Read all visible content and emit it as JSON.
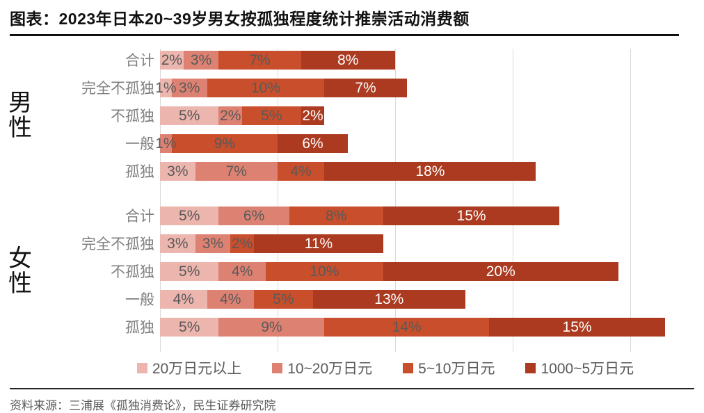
{
  "title": "图表：2023年日本20~39岁男女按孤独程度统计推崇活动消费额",
  "source_note": "资料来源：三浦展《孤独消费论》，民生证券研究院",
  "chart_data": {
    "type": "bar",
    "orientation": "horizontal",
    "stacked": true,
    "value_unit": "%",
    "xlim": [
      0,
      45
    ],
    "gridline_values": [
      0,
      10,
      20,
      30,
      40
    ],
    "grid_color": "#d9d9d9",
    "label_color_dark": "#595959",
    "label_color_white": "#ffffff",
    "legend_position": "bottom",
    "series": [
      {
        "name": "20万日元以上",
        "color": "#ecb5ad",
        "label_style": "dark"
      },
      {
        "name": "10~20万日元",
        "color": "#dd8272",
        "label_style": "dark"
      },
      {
        "name": "5~10万日元",
        "color": "#c94e2b",
        "label_style": "dark"
      },
      {
        "name": "1000~5万日元",
        "color": "#ab3a20",
        "label_style": "white"
      }
    ],
    "groups": [
      {
        "name": "男性",
        "rows": [
          {
            "label": "合计",
            "values": [
              2,
              3,
              7,
              8
            ]
          },
          {
            "label": "完全不孤独",
            "values": [
              1,
              3,
              10,
              7
            ]
          },
          {
            "label": "不孤独",
            "values": [
              5,
              2,
              5,
              2
            ]
          },
          {
            "label": "一般",
            "values": [
              0,
              1,
              9,
              6
            ]
          },
          {
            "label": "孤独",
            "values": [
              3,
              7,
              4,
              18
            ]
          }
        ]
      },
      {
        "name": "女性",
        "rows": [
          {
            "label": "合计",
            "values": [
              5,
              6,
              8,
              15
            ]
          },
          {
            "label": "完全不孤独",
            "values": [
              3,
              3,
              2,
              11
            ]
          },
          {
            "label": "不孤独",
            "values": [
              5,
              4,
              10,
              20
            ]
          },
          {
            "label": "一般",
            "values": [
              4,
              4,
              5,
              13
            ]
          },
          {
            "label": "孤独",
            "values": [
              5,
              9,
              14,
              15
            ]
          }
        ]
      }
    ]
  }
}
